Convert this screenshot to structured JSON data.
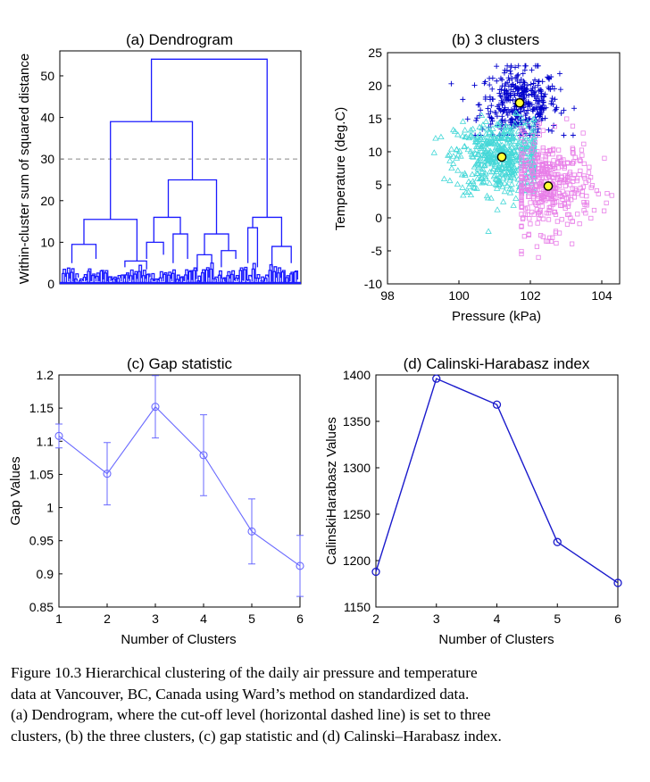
{
  "chart_data": [
    {
      "id": "a",
      "type": "dendrogram",
      "title": "(a)  Dendrogram",
      "ylabel": "Within-cluster sum of squared distance",
      "ylim": [
        0,
        56
      ],
      "yticks": [
        0,
        10,
        20,
        30,
        40,
        50
      ],
      "cutoff": 30,
      "main_merges": [
        {
          "left": 0.32,
          "right": 0.66,
          "height": 39
        },
        {
          "left": 0.48,
          "right": 0.84,
          "height": 54
        },
        {
          "left": 0.1,
          "right": 0.55,
          "height": 25
        },
        {
          "left": 0.79,
          "right": 0.89,
          "height": 16
        },
        {
          "left": 0.13,
          "right": 0.36,
          "height": 15.5
        },
        {
          "left": 0.43,
          "right": 0.67,
          "height": 12
        },
        {
          "left": 0.63,
          "right": 0.71,
          "height": 10
        },
        {
          "left": 0.47,
          "right": 0.57,
          "height": 16
        },
        {
          "left": 0.15,
          "right": 0.12,
          "height": 10
        }
      ],
      "color": "#1a1aff"
    },
    {
      "id": "b",
      "type": "scatter",
      "title": "(b)  3 clusters",
      "xlabel": "Pressure (kPa)",
      "ylabel": "Temperature (deg.C)",
      "xlim": [
        98,
        104.5
      ],
      "ylim": [
        -10,
        25
      ],
      "xticks": [
        98,
        100,
        102,
        104
      ],
      "yticks": [
        -10,
        -5,
        0,
        5,
        10,
        15,
        20,
        25
      ],
      "clusters": [
        {
          "marker": "+",
          "color": "#0000cc",
          "center": [
            101.7,
            17.3
          ],
          "spread": [
            0.55,
            2.6
          ]
        },
        {
          "marker": "triangle",
          "color": "#46d8d8",
          "center": [
            101.2,
            9.2
          ],
          "spread": [
            0.65,
            2.8
          ]
        },
        {
          "marker": "square",
          "color": "#e87ee8",
          "center": [
            102.5,
            4.8
          ],
          "spread": [
            0.6,
            3.5
          ]
        }
      ],
      "centroids": [
        [
          101.7,
          17.4
        ],
        [
          101.2,
          9.2
        ],
        [
          102.5,
          4.8
        ]
      ],
      "centroid_color": "#ffff33"
    },
    {
      "id": "c",
      "type": "line",
      "title": "(c)  Gap statistic",
      "xlabel": "Number of Clusters",
      "ylabel": "Gap Values",
      "xlim": [
        1,
        6
      ],
      "ylim": [
        0.85,
        1.2
      ],
      "xticks": [
        1,
        2,
        3,
        4,
        5,
        6
      ],
      "yticks": [
        0.85,
        0.9,
        0.95,
        1,
        1.05,
        1.1,
        1.15,
        1.2
      ],
      "ytick_labels": [
        "0.85",
        "0.9",
        "0.95",
        "1",
        "1.05",
        "1.1",
        "1.15",
        "1.2"
      ],
      "x": [
        1,
        2,
        3,
        4,
        5,
        6
      ],
      "values": [
        1.108,
        1.051,
        1.152,
        1.079,
        0.964,
        0.912
      ],
      "error": [
        0.018,
        0.047,
        0.047,
        0.061,
        0.049,
        0.046
      ],
      "color": "#6a6aff"
    },
    {
      "id": "d",
      "type": "line",
      "title": "(d)  Calinski-Harabasz index",
      "xlabel": "Number of Clusters",
      "ylabel": "CalinskiHarabasz Values",
      "xlim": [
        2,
        6
      ],
      "ylim": [
        1150,
        1400
      ],
      "xticks": [
        2,
        3,
        4,
        5,
        6
      ],
      "yticks": [
        1150,
        1200,
        1250,
        1300,
        1350,
        1400
      ],
      "x": [
        2,
        3,
        4,
        5,
        6
      ],
      "values": [
        1188,
        1396,
        1368,
        1220,
        1176
      ],
      "color": "#1a1acc"
    }
  ],
  "caption": {
    "line1": "Figure 10.3 Hierarchical clustering of the daily air pressure and temperature",
    "line2": "data at Vancouver, BC, Canada using Ward’s method on standardized data.",
    "line3": "(a) Dendrogram, where the cut-off level (horizontal dashed line) is set to three",
    "line4": "clusters, (b) the three clusters, (c) gap statistic and (d) Calinski–Harabasz index."
  }
}
